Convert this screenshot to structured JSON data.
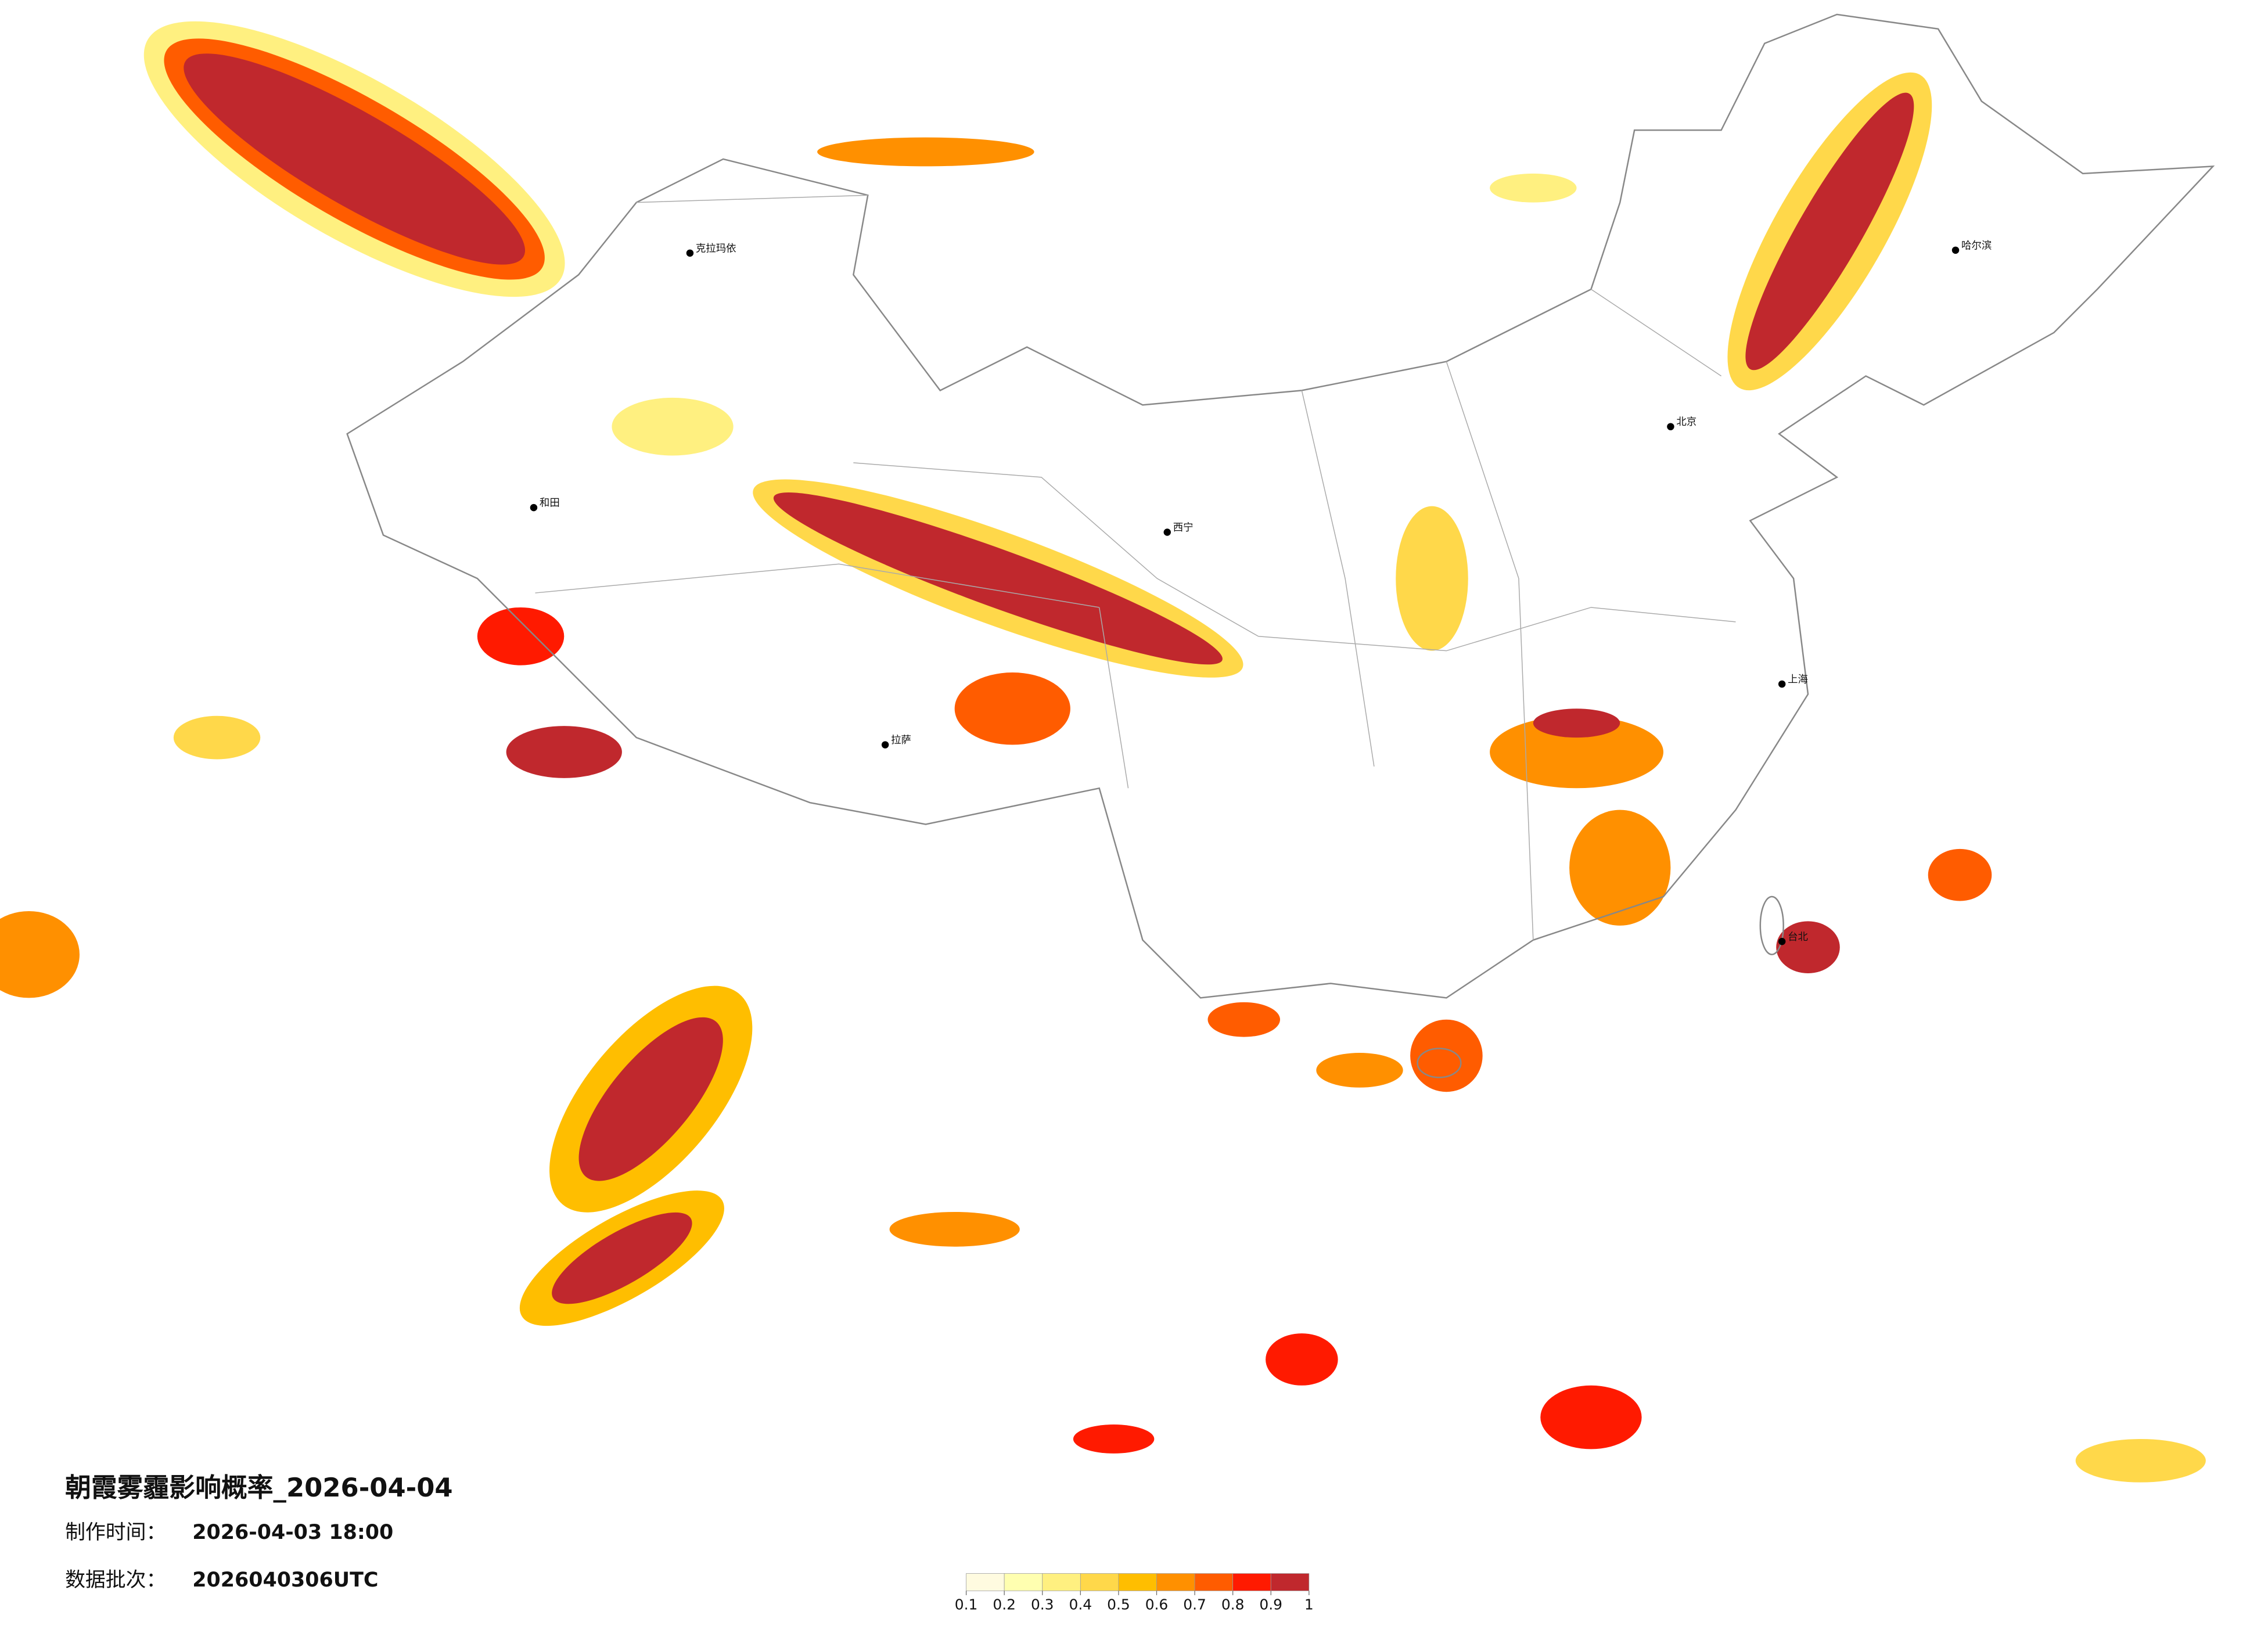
{
  "title": "朝霞雾霾影响概率_2026-04-04",
  "info": [
    {
      "label": "制作时间：",
      "value": "2026-04-03 18:00"
    },
    {
      "label": "数据批次：",
      "value": "2026040306UTC"
    }
  ],
  "legend": {
    "ticks": [
      0.1,
      0.2,
      0.3,
      0.4,
      0.5,
      0.6,
      0.7,
      0.8,
      0.9,
      1
    ],
    "colors": [
      "#fffbe0",
      "#ffffb0",
      "#fff080",
      "#ffd84a",
      "#ffbe00",
      "#ff9000",
      "#ff5c00",
      "#ff1a00",
      "#c0282d"
    ]
  },
  "map": {
    "cities": [
      "克拉玛依",
      "和田",
      "拉萨",
      "西宁",
      "北京",
      "哈尔滨",
      "上海",
      "台北"
    ]
  }
}
